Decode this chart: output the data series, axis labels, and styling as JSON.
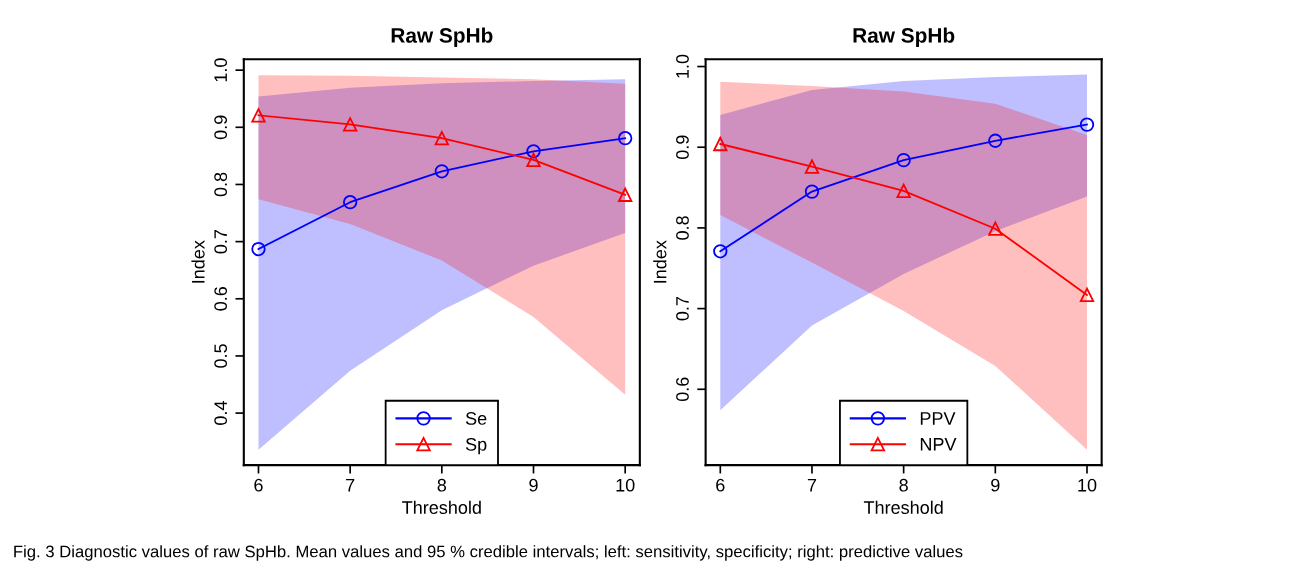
{
  "chart_data": [
    {
      "type": "line",
      "title": "Raw SpHb",
      "xlabel": "Threshold",
      "ylabel": "Index",
      "x": [
        6,
        7,
        8,
        9,
        10
      ],
      "xlim": [
        5.84,
        10.16
      ],
      "xticks": [
        6,
        7,
        8,
        9,
        10
      ],
      "ylim": [
        0.309,
        1.019
      ],
      "yticks": [
        0.4,
        0.5,
        0.6,
        0.7,
        0.8,
        0.9,
        {
          "value": 1,
          "label": "1.0"
        }
      ],
      "legend": "bottom",
      "grid": false,
      "line_style": "solid",
      "series": [
        {
          "name": "Se",
          "color": "#0000ff",
          "marker": "circle",
          "values": [
            0.687,
            0.769,
            0.823,
            0.858,
            0.881
          ],
          "lower": [
            0.336,
            0.474,
            0.58,
            0.658,
            0.715
          ],
          "upper": [
            0.954,
            0.969,
            0.977,
            0.981,
            0.984
          ]
        },
        {
          "name": "Sp",
          "color": "#ff0000",
          "marker": "triangle",
          "values": [
            0.921,
            0.905,
            0.881,
            0.843,
            0.782
          ],
          "lower": [
            0.774,
            0.731,
            0.667,
            0.568,
            0.432
          ],
          "upper": [
            0.991,
            0.99,
            0.987,
            0.984,
            0.976
          ]
        }
      ]
    },
    {
      "type": "line",
      "title": "Raw SpHb",
      "xlabel": "Threshold",
      "ylabel": "Index",
      "x": [
        6,
        7,
        8,
        9,
        10
      ],
      "xlim": [
        5.84,
        10.16
      ],
      "xticks": [
        6,
        7,
        8,
        9,
        10
      ],
      "ylim": [
        0.506,
        1.009
      ],
      "yticks": [
        0.6,
        0.7,
        0.8,
        0.9,
        {
          "value": 1,
          "label": "1.0"
        }
      ],
      "legend": "bottom",
      "grid": false,
      "line_style": "solid",
      "annotations": [
        "Fig. 3 Diagnostic values of raw SpHb. Mean values and 95 % credible intervals; left: sensitivity, specificity; right: predictive values"
      ],
      "series": [
        {
          "name": "PPV",
          "color": "#0000ff",
          "marker": "circle",
          "values": [
            0.771,
            0.845,
            0.884,
            0.908,
            0.928
          ],
          "lower": [
            0.574,
            0.679,
            0.743,
            0.796,
            0.839
          ],
          "upper": [
            0.94,
            0.971,
            0.982,
            0.987,
            0.99
          ]
        },
        {
          "name": "NPV",
          "color": "#ff0000",
          "marker": "triangle",
          "values": [
            0.904,
            0.876,
            0.846,
            0.799,
            0.717
          ],
          "lower": [
            0.816,
            0.757,
            0.697,
            0.629,
            0.525
          ],
          "upper": [
            0.981,
            0.976,
            0.969,
            0.954,
            0.915
          ]
        }
      ]
    }
  ]
}
